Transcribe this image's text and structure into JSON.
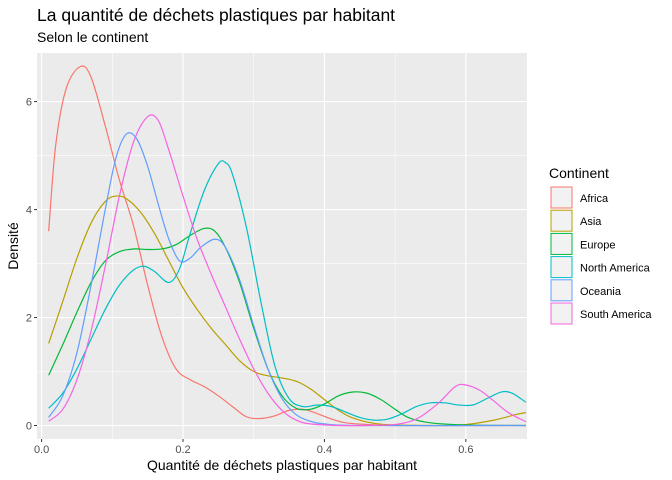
{
  "chart_data": {
    "type": "line",
    "title": "La quantité de déchets plastiques par habitant",
    "subtitle": "Selon le continent",
    "xlabel": "Quantité de déchets plastiques par habitant",
    "ylabel": "Densité",
    "xlim": [
      -0.0065,
      0.6865
    ],
    "ylim": [
      -0.25,
      6.9
    ],
    "x_ticks": [
      0.0,
      0.2,
      0.4,
      0.6
    ],
    "x_tick_labels": [
      "0.0",
      "0.2",
      "0.4",
      "0.6"
    ],
    "y_ticks": [
      0,
      2,
      4,
      6
    ],
    "y_tick_labels": [
      "0",
      "2",
      "4",
      "6"
    ],
    "grid": true,
    "legend_title": "Continent",
    "legend_position": "right",
    "series": [
      {
        "name": "Africa",
        "color": "#F8766D",
        "points": [
          [
            0.01,
            3.6
          ],
          [
            0.02,
            5.2
          ],
          [
            0.035,
            6.25
          ],
          [
            0.055,
            6.65
          ],
          [
            0.07,
            6.45
          ],
          [
            0.09,
            5.55
          ],
          [
            0.11,
            4.55
          ],
          [
            0.13,
            3.7
          ],
          [
            0.15,
            2.6
          ],
          [
            0.17,
            1.65
          ],
          [
            0.19,
            1.05
          ],
          [
            0.21,
            0.85
          ],
          [
            0.23,
            0.72
          ],
          [
            0.25,
            0.55
          ],
          [
            0.27,
            0.35
          ],
          [
            0.29,
            0.16
          ],
          [
            0.31,
            0.13
          ],
          [
            0.33,
            0.18
          ],
          [
            0.35,
            0.28
          ],
          [
            0.37,
            0.3
          ],
          [
            0.39,
            0.22
          ],
          [
            0.41,
            0.12
          ],
          [
            0.43,
            0.05
          ],
          [
            0.46,
            0.02
          ],
          [
            0.5,
            0.0
          ],
          [
            0.6,
            0.0
          ],
          [
            0.685,
            0.0
          ]
        ]
      },
      {
        "name": "Asia",
        "color": "#B79F00",
        "points": [
          [
            0.01,
            1.52
          ],
          [
            0.03,
            2.3
          ],
          [
            0.05,
            3.1
          ],
          [
            0.07,
            3.75
          ],
          [
            0.09,
            4.15
          ],
          [
            0.105,
            4.25
          ],
          [
            0.12,
            4.2
          ],
          [
            0.14,
            3.95
          ],
          [
            0.16,
            3.55
          ],
          [
            0.18,
            3.05
          ],
          [
            0.2,
            2.55
          ],
          [
            0.22,
            2.15
          ],
          [
            0.24,
            1.8
          ],
          [
            0.26,
            1.5
          ],
          [
            0.28,
            1.2
          ],
          [
            0.3,
            1.0
          ],
          [
            0.32,
            0.92
          ],
          [
            0.34,
            0.88
          ],
          [
            0.36,
            0.82
          ],
          [
            0.38,
            0.68
          ],
          [
            0.4,
            0.48
          ],
          [
            0.42,
            0.28
          ],
          [
            0.44,
            0.14
          ],
          [
            0.47,
            0.04
          ],
          [
            0.5,
            0.01
          ],
          [
            0.55,
            0.0
          ],
          [
            0.6,
            0.02
          ],
          [
            0.64,
            0.1
          ],
          [
            0.67,
            0.2
          ],
          [
            0.685,
            0.24
          ]
        ]
      },
      {
        "name": "Europe",
        "color": "#00BA38",
        "points": [
          [
            0.01,
            0.93
          ],
          [
            0.03,
            1.5
          ],
          [
            0.05,
            2.1
          ],
          [
            0.07,
            2.65
          ],
          [
            0.09,
            3.05
          ],
          [
            0.11,
            3.22
          ],
          [
            0.13,
            3.27
          ],
          [
            0.15,
            3.26
          ],
          [
            0.17,
            3.27
          ],
          [
            0.19,
            3.35
          ],
          [
            0.21,
            3.52
          ],
          [
            0.23,
            3.65
          ],
          [
            0.245,
            3.6
          ],
          [
            0.26,
            3.3
          ],
          [
            0.28,
            2.65
          ],
          [
            0.3,
            1.8
          ],
          [
            0.32,
            1.05
          ],
          [
            0.34,
            0.55
          ],
          [
            0.36,
            0.32
          ],
          [
            0.38,
            0.3
          ],
          [
            0.4,
            0.4
          ],
          [
            0.42,
            0.55
          ],
          [
            0.44,
            0.62
          ],
          [
            0.46,
            0.6
          ],
          [
            0.48,
            0.48
          ],
          [
            0.5,
            0.3
          ],
          [
            0.52,
            0.14
          ],
          [
            0.55,
            0.05
          ],
          [
            0.6,
            0.01
          ],
          [
            0.685,
            0.0
          ]
        ]
      },
      {
        "name": "North America",
        "color": "#00BFC4",
        "points": [
          [
            0.01,
            0.32
          ],
          [
            0.03,
            0.6
          ],
          [
            0.05,
            1.05
          ],
          [
            0.07,
            1.6
          ],
          [
            0.09,
            2.15
          ],
          [
            0.11,
            2.6
          ],
          [
            0.13,
            2.88
          ],
          [
            0.145,
            2.95
          ],
          [
            0.16,
            2.85
          ],
          [
            0.18,
            2.65
          ],
          [
            0.195,
            2.9
          ],
          [
            0.21,
            3.55
          ],
          [
            0.23,
            4.35
          ],
          [
            0.25,
            4.85
          ],
          [
            0.26,
            4.87
          ],
          [
            0.27,
            4.65
          ],
          [
            0.29,
            3.65
          ],
          [
            0.31,
            2.3
          ],
          [
            0.33,
            1.1
          ],
          [
            0.35,
            0.5
          ],
          [
            0.37,
            0.35
          ],
          [
            0.39,
            0.38
          ],
          [
            0.41,
            0.35
          ],
          [
            0.43,
            0.25
          ],
          [
            0.45,
            0.15
          ],
          [
            0.47,
            0.1
          ],
          [
            0.49,
            0.12
          ],
          [
            0.51,
            0.22
          ],
          [
            0.53,
            0.35
          ],
          [
            0.55,
            0.42
          ],
          [
            0.57,
            0.42
          ],
          [
            0.59,
            0.38
          ],
          [
            0.61,
            0.38
          ],
          [
            0.63,
            0.5
          ],
          [
            0.65,
            0.62
          ],
          [
            0.665,
            0.6
          ],
          [
            0.685,
            0.43
          ]
        ]
      },
      {
        "name": "Oceania",
        "color": "#619CFF",
        "points": [
          [
            0.01,
            0.15
          ],
          [
            0.03,
            0.55
          ],
          [
            0.05,
            1.35
          ],
          [
            0.07,
            2.6
          ],
          [
            0.09,
            4.0
          ],
          [
            0.105,
            4.95
          ],
          [
            0.12,
            5.4
          ],
          [
            0.135,
            5.3
          ],
          [
            0.15,
            4.8
          ],
          [
            0.165,
            4.1
          ],
          [
            0.18,
            3.45
          ],
          [
            0.195,
            3.05
          ],
          [
            0.21,
            3.1
          ],
          [
            0.225,
            3.3
          ],
          [
            0.245,
            3.45
          ],
          [
            0.26,
            3.3
          ],
          [
            0.28,
            2.7
          ],
          [
            0.3,
            1.85
          ],
          [
            0.32,
            1.05
          ],
          [
            0.34,
            0.5
          ],
          [
            0.36,
            0.2
          ],
          [
            0.38,
            0.08
          ],
          [
            0.4,
            0.03
          ],
          [
            0.45,
            0.0
          ],
          [
            0.685,
            0.0
          ]
        ]
      },
      {
        "name": "South America",
        "color": "#F564E3",
        "points": [
          [
            0.01,
            0.08
          ],
          [
            0.03,
            0.3
          ],
          [
            0.05,
            0.85
          ],
          [
            0.07,
            1.75
          ],
          [
            0.09,
            2.95
          ],
          [
            0.11,
            4.25
          ],
          [
            0.13,
            5.25
          ],
          [
            0.15,
            5.72
          ],
          [
            0.165,
            5.65
          ],
          [
            0.18,
            5.1
          ],
          [
            0.2,
            4.25
          ],
          [
            0.22,
            3.45
          ],
          [
            0.24,
            2.8
          ],
          [
            0.26,
            2.2
          ],
          [
            0.28,
            1.6
          ],
          [
            0.3,
            1.05
          ],
          [
            0.32,
            0.6
          ],
          [
            0.34,
            0.28
          ],
          [
            0.36,
            0.1
          ],
          [
            0.38,
            0.03
          ],
          [
            0.42,
            0.0
          ],
          [
            0.46,
            0.0
          ],
          [
            0.5,
            0.02
          ],
          [
            0.53,
            0.12
          ],
          [
            0.56,
            0.4
          ],
          [
            0.585,
            0.72
          ],
          [
            0.6,
            0.75
          ],
          [
            0.62,
            0.65
          ],
          [
            0.64,
            0.45
          ],
          [
            0.66,
            0.24
          ],
          [
            0.685,
            0.07
          ]
        ]
      }
    ]
  }
}
